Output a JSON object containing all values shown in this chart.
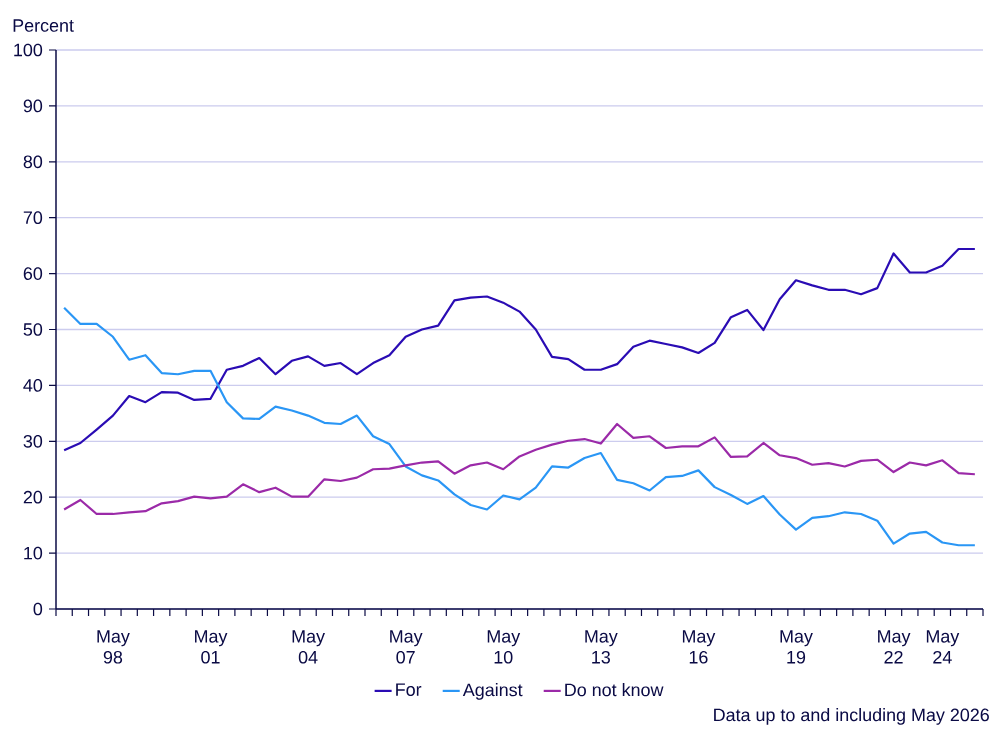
{
  "chart_data": {
    "type": "line",
    "ylabel": "Percent",
    "annotations": [
      "Data up to and including May 2026"
    ],
    "categories": [
      null,
      null,
      null,
      "May 98",
      null,
      null,
      null,
      null,
      null,
      "May 01",
      null,
      null,
      null,
      null,
      null,
      "May 04",
      null,
      null,
      null,
      null,
      null,
      "May 07",
      null,
      null,
      null,
      null,
      null,
      "May 10",
      null,
      null,
      null,
      null,
      null,
      "May 13",
      null,
      null,
      null,
      null,
      null,
      "May 16",
      null,
      null,
      null,
      null,
      null,
      "May 19",
      null,
      null,
      null,
      null,
      null,
      "May 22",
      null,
      null,
      "May 24",
      null,
      null
    ],
    "series": [
      {
        "name": "For",
        "color": "#2a0cb4",
        "values": [
          28.4,
          29.7,
          32.1,
          34.6,
          38.1,
          37.0,
          38.8,
          38.7,
          37.4,
          37.6,
          42.8,
          43.5,
          44.9,
          42.0,
          44.4,
          45.2,
          43.5,
          44.0,
          42.0,
          44.0,
          45.4,
          48.7,
          50.0,
          50.7,
          55.2,
          55.7,
          55.9,
          54.8,
          53.2,
          50.0,
          45.1,
          44.7,
          42.8,
          42.8,
          43.8,
          46.9,
          48.0,
          47.4,
          46.8,
          45.8,
          47.6,
          52.2,
          53.5,
          49.9,
          55.4,
          58.8,
          57.9,
          57.1,
          57.1,
          56.3,
          57.4,
          63.6,
          60.2,
          60.2,
          61.4,
          64.4,
          64.4
        ]
      },
      {
        "name": "Against",
        "color": "#2a96f5",
        "values": [
          53.9,
          51.0,
          51.0,
          48.7,
          44.6,
          45.4,
          42.2,
          42.0,
          42.6,
          42.6,
          37.0,
          34.1,
          34.0,
          36.2,
          35.5,
          34.6,
          33.3,
          33.1,
          34.6,
          30.9,
          29.5,
          25.5,
          23.9,
          23.0,
          20.5,
          18.6,
          17.8,
          20.3,
          19.6,
          21.7,
          25.5,
          25.3,
          27.0,
          27.9,
          23.1,
          22.5,
          21.2,
          23.6,
          23.8,
          24.8,
          21.8,
          20.4,
          18.8,
          20.2,
          16.9,
          14.2,
          16.3,
          16.6,
          17.3,
          17.0,
          15.8,
          11.7,
          13.5,
          13.8,
          11.9,
          11.4,
          11.4
        ]
      },
      {
        "name": "Do not know",
        "color": "#9b2aa8",
        "values": [
          17.8,
          19.5,
          17.0,
          17.0,
          17.3,
          17.5,
          18.9,
          19.3,
          20.1,
          19.8,
          20.1,
          22.3,
          20.9,
          21.7,
          20.1,
          20.1,
          23.2,
          22.9,
          23.5,
          25.0,
          25.1,
          25.7,
          26.2,
          26.4,
          24.2,
          25.7,
          26.2,
          25.0,
          27.3,
          28.5,
          29.4,
          30.1,
          30.4,
          29.6,
          33.1,
          30.6,
          30.9,
          28.8,
          29.1,
          29.1,
          30.7,
          27.2,
          27.3,
          29.7,
          27.5,
          27.0,
          25.8,
          26.1,
          25.5,
          26.5,
          26.7,
          24.5,
          26.2,
          25.7,
          26.6,
          24.3,
          24.1
        ]
      }
    ],
    "ylim": [
      0,
      100
    ],
    "yticks": [
      0,
      10,
      20,
      30,
      40,
      50,
      60,
      70,
      80,
      90,
      100
    ],
    "grid": "y",
    "legend": "bottom"
  }
}
